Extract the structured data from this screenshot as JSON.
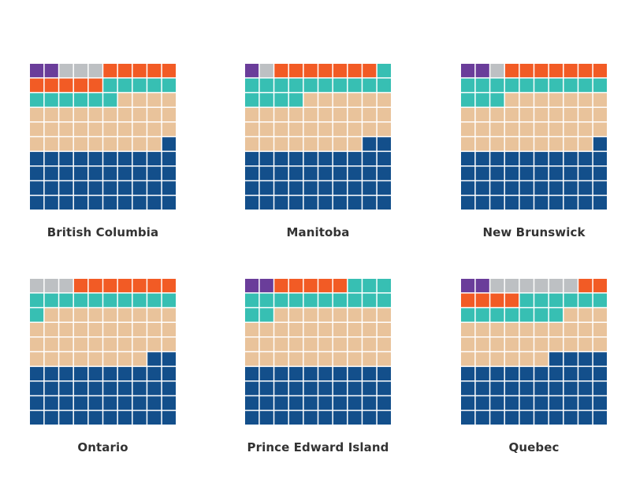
{
  "chart_data": [
    {
      "type": "waffle",
      "title": "British Columbia",
      "segments": [
        {
          "color": "#6a3d9a",
          "value": 2
        },
        {
          "color": "#bdc0c3",
          "value": 3
        },
        {
          "color": "#f25b25",
          "value": 10
        },
        {
          "color": "#37bfb3",
          "value": 11
        },
        {
          "color": "#e9c39b",
          "value": 33
        },
        {
          "color": "#134f8b",
          "value": 41
        }
      ]
    },
    {
      "type": "waffle",
      "title": "Manitoba",
      "segments": [
        {
          "color": "#6a3d9a",
          "value": 1
        },
        {
          "color": "#bdc0c3",
          "value": 1
        },
        {
          "color": "#f25b25",
          "value": 7
        },
        {
          "color": "#37bfb3",
          "value": 15
        },
        {
          "color": "#e9c39b",
          "value": 34
        },
        {
          "color": "#134f8b",
          "value": 42
        }
      ]
    },
    {
      "type": "waffle",
      "title": "New Brunswick",
      "segments": [
        {
          "color": "#6a3d9a",
          "value": 2
        },
        {
          "color": "#bdc0c3",
          "value": 1
        },
        {
          "color": "#f25b25",
          "value": 7
        },
        {
          "color": "#37bfb3",
          "value": 13
        },
        {
          "color": "#e9c39b",
          "value": 36
        },
        {
          "color": "#134f8b",
          "value": 41
        }
      ]
    },
    {
      "type": "waffle",
      "title": "Ontario",
      "segments": [
        {
          "color": "#6a3d9a",
          "value": 0
        },
        {
          "color": "#bdc0c3",
          "value": 3
        },
        {
          "color": "#f25b25",
          "value": 7
        },
        {
          "color": "#37bfb3",
          "value": 11
        },
        {
          "color": "#e9c39b",
          "value": 37
        },
        {
          "color": "#134f8b",
          "value": 42
        }
      ]
    },
    {
      "type": "waffle",
      "title": "Prince Edward Island",
      "segments": [
        {
          "color": "#6a3d9a",
          "value": 2
        },
        {
          "color": "#bdc0c3",
          "value": 0
        },
        {
          "color": "#f25b25",
          "value": 5
        },
        {
          "color": "#37bfb3",
          "value": 15
        },
        {
          "color": "#e9c39b",
          "value": 38
        },
        {
          "color": "#134f8b",
          "value": 40
        }
      ]
    },
    {
      "type": "waffle",
      "title": "Quebec",
      "segments": [
        {
          "color": "#6a3d9a",
          "value": 2
        },
        {
          "color": "#bdc0c3",
          "value": 6
        },
        {
          "color": "#f25b25",
          "value": 6
        },
        {
          "color": "#37bfb3",
          "value": 13
        },
        {
          "color": "#e9c39b",
          "value": 29
        },
        {
          "color": "#134f8b",
          "value": 44
        }
      ]
    }
  ]
}
